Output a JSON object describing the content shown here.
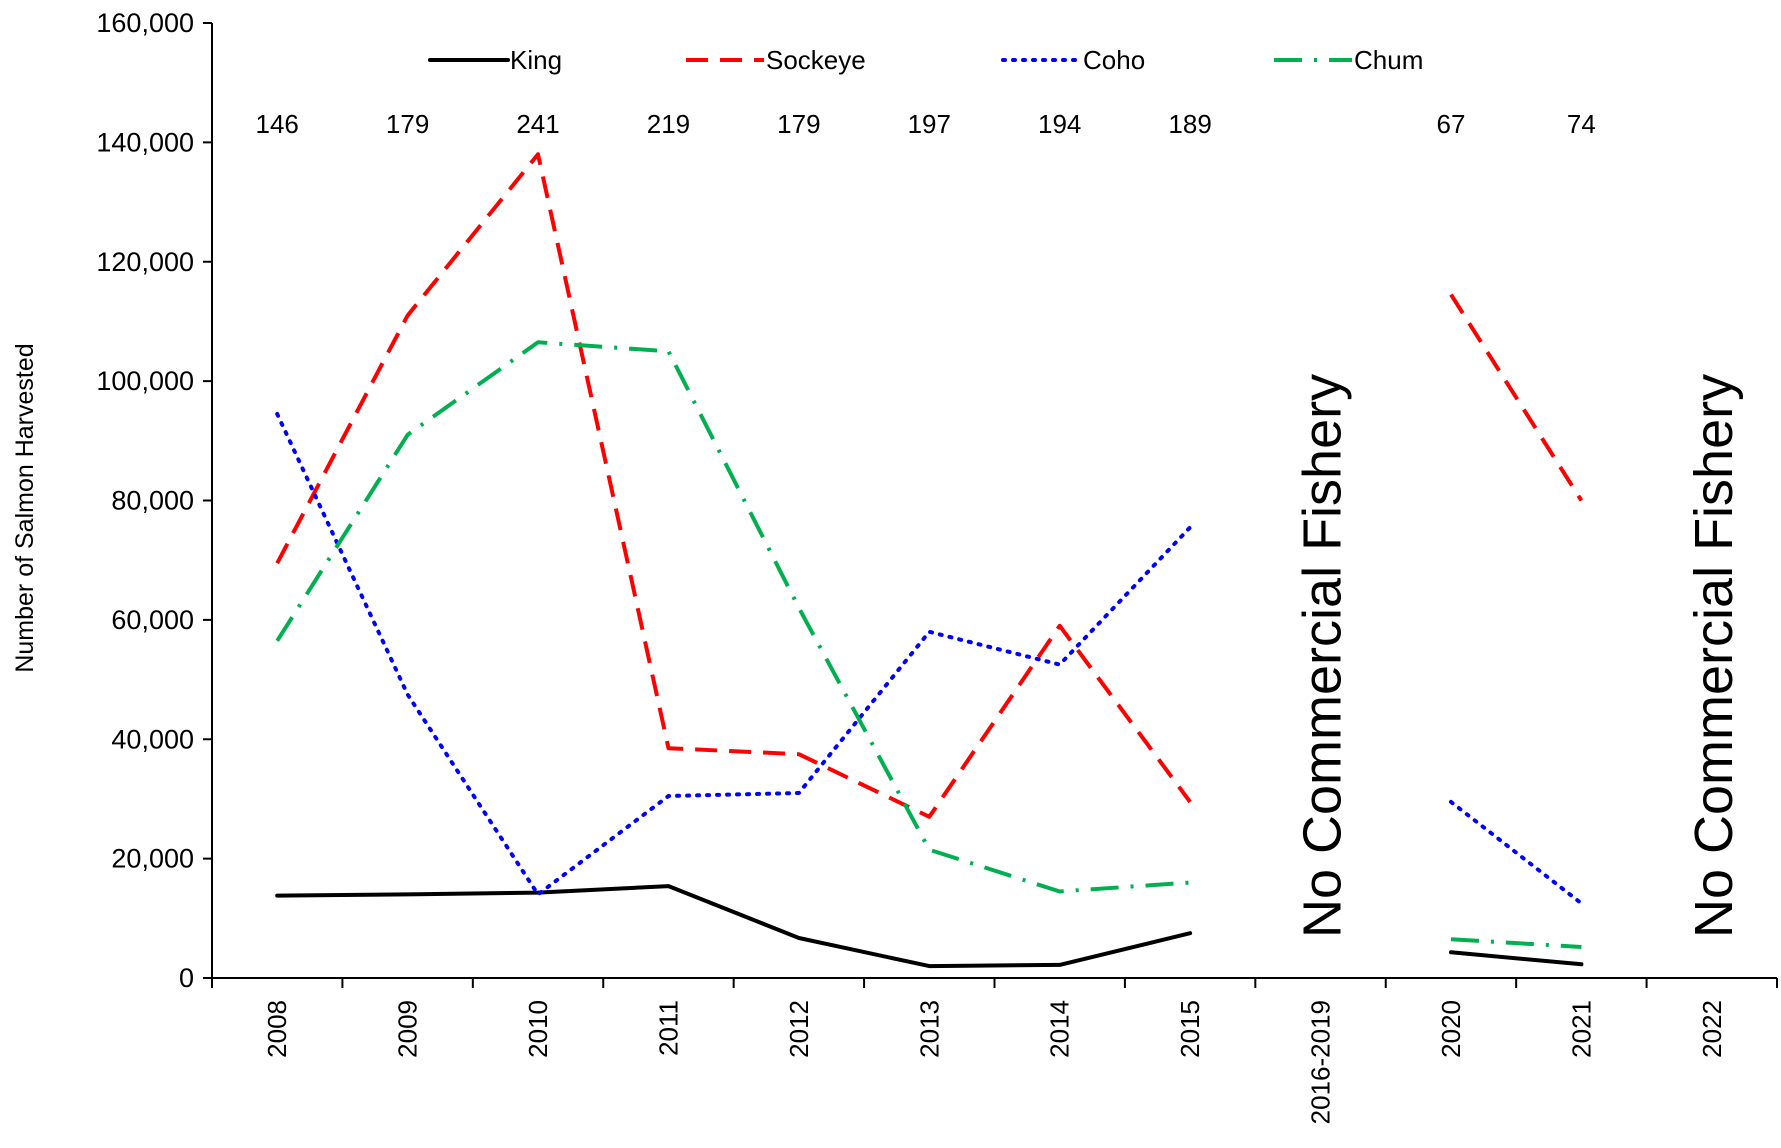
{
  "chart_data": {
    "type": "line",
    "title": "",
    "xlabel": "",
    "ylabel": "Number of Salmon Harvested",
    "ylim": [
      0,
      160000
    ],
    "yticks": [
      "0",
      "20,000",
      "40,000",
      "60,000",
      "80,000",
      "100,000",
      "120,000",
      "140,000",
      "160,000"
    ],
    "categories": [
      "2008",
      "2009",
      "2010",
      "2011",
      "2012",
      "2013",
      "2014",
      "2015",
      "2016-2019",
      "2020",
      "2021",
      "2022"
    ],
    "legend_position": "top",
    "grid": false,
    "series": [
      {
        "name": "King",
        "color": "#000000",
        "style": "solid",
        "values": [
          13800,
          14000,
          14300,
          15400,
          6700,
          2000,
          2200,
          7500,
          null,
          4300,
          2300,
          null
        ]
      },
      {
        "name": "Sockeye",
        "color": "#ff0000",
        "style": "dashed",
        "values": [
          69500,
          111000,
          138000,
          38500,
          37500,
          27000,
          59000,
          29500,
          null,
          114500,
          80000,
          null
        ]
      },
      {
        "name": "Coho",
        "color": "#0000ff",
        "style": "dotted",
        "values": [
          94500,
          47500,
          14000,
          30500,
          31000,
          58000,
          52500,
          75500,
          null,
          29500,
          12500,
          null
        ]
      },
      {
        "name": "Chum",
        "color": "#00b050",
        "style": "dash-dot",
        "values": [
          56500,
          91000,
          106500,
          105000,
          62000,
          21500,
          14500,
          16000,
          null,
          6500,
          5200,
          null
        ]
      }
    ],
    "annotations": {
      "counts": [
        "146",
        "179",
        "241",
        "219",
        "179",
        "197",
        "194",
        "189",
        "",
        "67",
        "74",
        ""
      ],
      "no_fishery": [
        {
          "category": "2016-2019",
          "text": "No Commercial Fishery"
        },
        {
          "category": "2022",
          "text": "No Commercial Fishery"
        }
      ]
    }
  }
}
